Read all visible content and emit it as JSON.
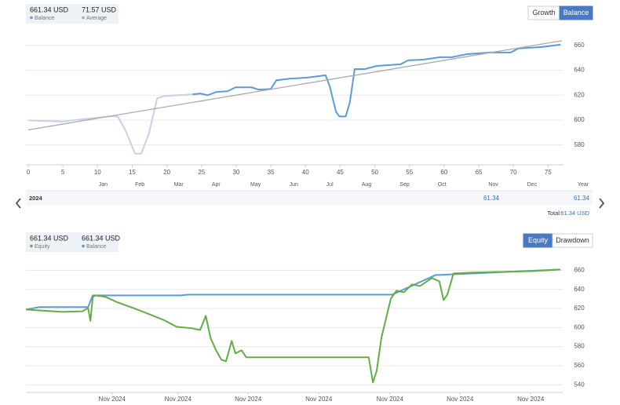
{
  "growth_panel": {
    "stats": [
      {
        "value": "661.34 USD",
        "label": "Balance"
      },
      {
        "value": "71.57 USD",
        "label": "Average"
      }
    ],
    "buttons": [
      "Growth",
      "Balance"
    ]
  },
  "chart_data": [
    {
      "type": "line",
      "xlim": [
        0,
        77
      ],
      "ylim": [
        564,
        670
      ],
      "xticks": [
        0,
        5,
        10,
        15,
        20,
        25,
        30,
        35,
        40,
        45,
        50,
        55,
        60,
        65,
        70,
        75
      ],
      "yticks": [
        580,
        600,
        620,
        640,
        660
      ],
      "month_ticks": [
        {
          "value": 10.8,
          "label": "Jan"
        },
        {
          "value": 16.1,
          "label": "Feb"
        },
        {
          "value": 21.7,
          "label": "Mar"
        },
        {
          "value": 27.1,
          "label": "Apr"
        },
        {
          "value": 32.8,
          "label": "May"
        },
        {
          "value": 38.3,
          "label": "Jun"
        },
        {
          "value": 43.5,
          "label": "Jul"
        },
        {
          "value": 48.8,
          "label": "Aug"
        },
        {
          "value": 54.3,
          "label": "Sep"
        },
        {
          "value": 59.7,
          "label": "Oct"
        },
        {
          "value": 67.1,
          "label": "Nov"
        },
        {
          "value": 72.7,
          "label": "Dec"
        }
      ],
      "month_axis_label": "Year",
      "grid": true,
      "series": [
        {
          "color": "#c6d0ea",
          "x": [
            0,
            5,
            6.7,
            9.5,
            11.8,
            12.9,
            14,
            15.4,
            16.3,
            17.4,
            18.6,
            19.7,
            23.7
          ],
          "values": [
            599.7,
            598.8,
            600,
            601.6,
            603,
            603,
            592,
            573,
            573,
            589,
            617.5,
            619.4,
            620.6
          ]
        },
        {
          "color": "#5b9bd5",
          "x": [
            23.7,
            24.8,
            25.9,
            27.1,
            28.8,
            29.9,
            32.2,
            33.3,
            35,
            35.8,
            37.8,
            40.1,
            42.9,
            43.5,
            44.4,
            44.9,
            45.8,
            46.4,
            47.1,
            48.6,
            50.3,
            53.7,
            54.8,
            57.1,
            59.4,
            61.1,
            63.3,
            66.7,
            69.6,
            70.7,
            74.1,
            76.8
          ],
          "values": [
            620.6,
            621.3,
            620,
            622.5,
            623.2,
            626.3,
            626.3,
            624.4,
            625,
            632,
            633.3,
            634,
            636,
            627,
            606.7,
            602.9,
            602.9,
            614.3,
            641,
            641,
            643.5,
            644.8,
            648,
            648.6,
            650.5,
            650.5,
            653,
            654.3,
            654.3,
            657.5,
            658.7,
            660.6
          ]
        },
        {
          "color": "#aaaaaa",
          "x": [
            0,
            77
          ],
          "values": [
            592.1,
            663.8
          ]
        }
      ]
    },
    {
      "type": "line",
      "xlim": [
        0,
        114
      ],
      "ylim": [
        532,
        671
      ],
      "xticks": [
        {
          "value": 18.3,
          "label": "Nov 2024"
        },
        {
          "value": 32.3,
          "label": "Nov 2024"
        },
        {
          "value": 47.2,
          "label": "Nov 2024"
        },
        {
          "value": 62.2,
          "label": "Nov 2024"
        },
        {
          "value": 77.3,
          "label": "Nov 2024"
        },
        {
          "value": 92.2,
          "label": "Nov 2024"
        },
        {
          "value": 107.2,
          "label": "Nov 2024"
        }
      ],
      "yticks": [
        540,
        560,
        580,
        600,
        620,
        640,
        660
      ],
      "grid": true,
      "series": [
        {
          "name": "Balance",
          "color": "#5b9bd5",
          "x": [
            0,
            2.8,
            13.2,
            14.2,
            32.8,
            34.5,
            77.8,
            87,
            113.5
          ],
          "values": [
            618.9,
            621.4,
            621.4,
            633.7,
            633.7,
            634.5,
            634.5,
            655,
            660.8
          ]
        },
        {
          "name": "Equity",
          "color": "#62ad45",
          "x": [
            0,
            2.8,
            7.8,
            12,
            13.2,
            13.7,
            14.2,
            14.8,
            17,
            19.5,
            22.8,
            26.2,
            29.5,
            32,
            35.3,
            37,
            38.2,
            39.2,
            40.3,
            41.5,
            42.5,
            43.7,
            44.5,
            45.8,
            46.8,
            72.8,
            73.7,
            74.5,
            75.5,
            76.5,
            77.5,
            78.7,
            80.3,
            82,
            83.7,
            86.2,
            87.8,
            88.7,
            89.5,
            90.8,
            94.5,
            101.2,
            107.8,
            113.5
          ],
          "values": [
            618.9,
            618,
            616.4,
            617,
            620.5,
            607,
            632,
            633.7,
            632,
            626.3,
            620.5,
            614,
            607.4,
            600.8,
            599.2,
            597.5,
            612.3,
            589.3,
            577,
            566.3,
            564.7,
            586,
            572.9,
            576.2,
            568.8,
            568.8,
            542.5,
            554.8,
            589.3,
            609.9,
            630.4,
            638.6,
            637,
            645.2,
            643.5,
            651.8,
            648.5,
            628.8,
            634.5,
            656.7,
            657.5,
            658.4,
            659.2,
            660.8
          ]
        }
      ]
    }
  ],
  "year_table": {
    "rows": [
      [
        "2024",
        "61.34",
        "61.34"
      ]
    ],
    "total_label": "Total:",
    "total_value": "61.34 USD"
  },
  "equity_panel": {
    "stats": [
      {
        "value": "661.34 USD",
        "label": "Equity"
      },
      {
        "value": "661.34 USD",
        "label": "Balance"
      }
    ],
    "buttons": [
      "Equity",
      "Drawdown"
    ]
  }
}
